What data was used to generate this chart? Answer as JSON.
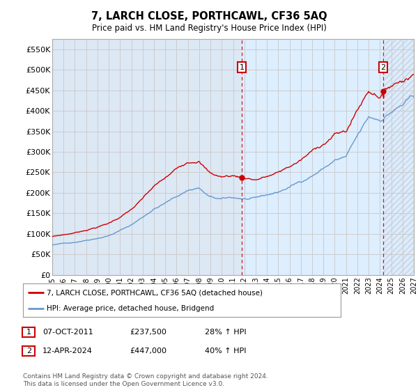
{
  "title": "7, LARCH CLOSE, PORTHCAWL, CF36 5AQ",
  "subtitle": "Price paid vs. HM Land Registry's House Price Index (HPI)",
  "footer": "Contains HM Land Registry data © Crown copyright and database right 2024.\nThis data is licensed under the Open Government Licence v3.0.",
  "legend_line1": "7, LARCH CLOSE, PORTHCAWL, CF36 5AQ (detached house)",
  "legend_line2": "HPI: Average price, detached house, Bridgend",
  "annotation1_label": "1",
  "annotation1_date": "07-OCT-2011",
  "annotation1_price": "£237,500",
  "annotation1_hpi": "28% ↑ HPI",
  "annotation2_label": "2",
  "annotation2_date": "12-APR-2024",
  "annotation2_price": "£447,000",
  "annotation2_hpi": "40% ↑ HPI",
  "red_color": "#cc0000",
  "blue_color": "#6699cc",
  "grid_color": "#cccccc",
  "bg_color": "#ffffff",
  "plot_bg_color": "#dde8f5",
  "shade_color": "#ccddf0",
  "ylim": [
    0,
    575000
  ],
  "yticks": [
    0,
    50000,
    100000,
    150000,
    200000,
    250000,
    300000,
    350000,
    400000,
    450000,
    500000,
    550000
  ],
  "ytick_labels": [
    "£0",
    "£50K",
    "£100K",
    "£150K",
    "£200K",
    "£250K",
    "£300K",
    "£350K",
    "£400K",
    "£450K",
    "£500K",
    "£550K"
  ],
  "xticks": [
    1995,
    1996,
    1997,
    1998,
    1999,
    2000,
    2001,
    2002,
    2003,
    2004,
    2005,
    2006,
    2007,
    2008,
    2009,
    2010,
    2011,
    2012,
    2013,
    2014,
    2015,
    2016,
    2017,
    2018,
    2019,
    2020,
    2021,
    2022,
    2023,
    2024,
    2025,
    2026,
    2027
  ],
  "sale1_x": 2011.77,
  "sale1_y": 237500,
  "sale2_x": 2024.28,
  "sale2_y": 447000,
  "hatch_start": 2024.28,
  "shade_start": 2011.77
}
